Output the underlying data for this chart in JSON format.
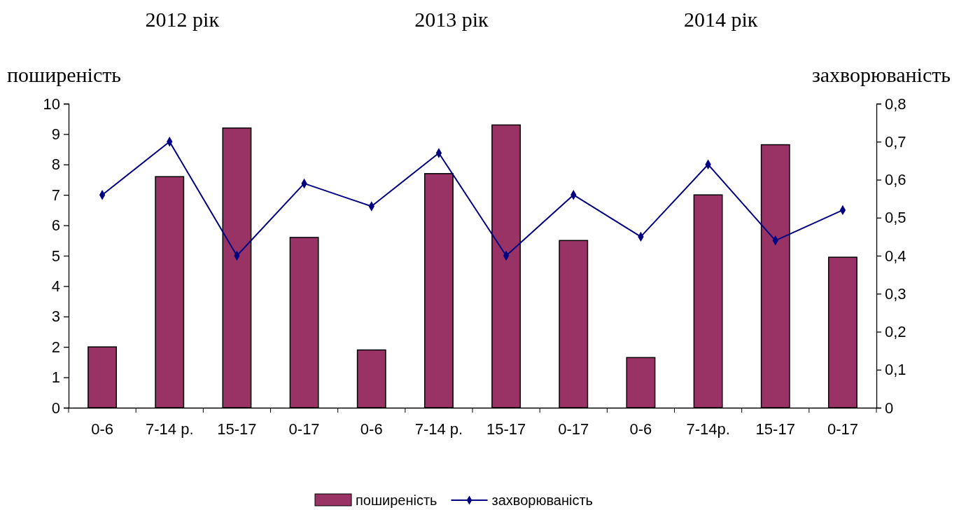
{
  "chart_data": {
    "type": "bar",
    "categories": [
      "0-6",
      "7-14 р.",
      "15-17",
      "0-17",
      "0-6",
      "7-14 р.",
      "15-17",
      "0-17",
      "0-6",
      "7-14р.",
      "15-17",
      "0-17"
    ],
    "series": [
      {
        "name": "поширеність",
        "color": "#993366",
        "values": [
          2.0,
          7.6,
          9.2,
          5.6,
          1.9,
          7.7,
          9.3,
          5.5,
          1.65,
          7.0,
          8.65,
          4.95
        ]
      },
      {
        "name": "захворюваність",
        "type": "line",
        "axis": "y2",
        "color": "#000080",
        "marker": "diamond",
        "values": [
          0.56,
          0.7,
          0.4,
          0.59,
          0.53,
          0.67,
          0.4,
          0.56,
          0.45,
          0.64,
          0.44,
          0.52
        ]
      }
    ],
    "ylabel": "поширеність",
    "y2label": "захворюваність",
    "ylim": [
      0,
      10
    ],
    "yticks": [
      0,
      1,
      2,
      3,
      4,
      5,
      6,
      7,
      8,
      9,
      10
    ],
    "y2lim": [
      0,
      0.8
    ],
    "y2ticks": [
      {
        "value": 0,
        "label": "0"
      },
      {
        "value": 0.1,
        "label": "0,1"
      },
      {
        "value": 0.2,
        "label": "0,2"
      },
      {
        "value": 0.3,
        "label": "0,3"
      },
      {
        "value": 0.4,
        "label": "0,4"
      },
      {
        "value": 0.5,
        "label": "0,5"
      },
      {
        "value": 0.6,
        "label": "0,6"
      },
      {
        "value": 0.7,
        "label": "0,7"
      },
      {
        "value": 0.8,
        "label": "0,8"
      }
    ],
    "annotations": [
      "2012 рік",
      "2013 рік",
      "2014 рік"
    ],
    "grid": false,
    "legend": "bottom"
  }
}
